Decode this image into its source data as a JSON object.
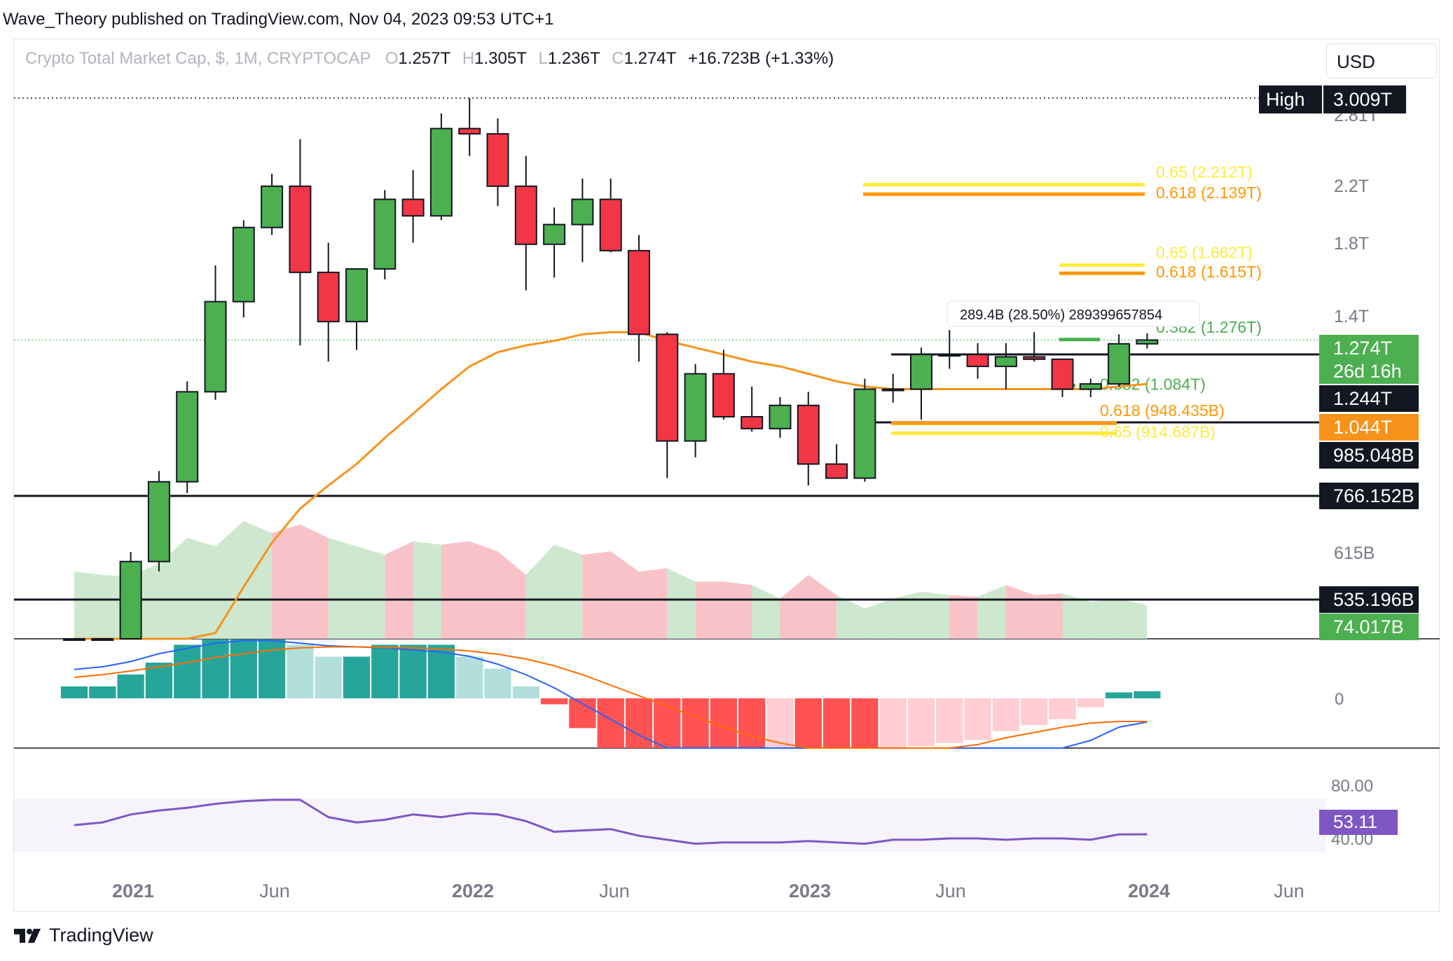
{
  "publisher": "Wave_Theory published on TradingView.com, Nov 04, 2023 09:53 UTC+1",
  "legend": {
    "symbol": "Crypto Total Market Cap, $, 1M, CRYPTOCAP",
    "o_key": "O",
    "o": "1.257T",
    "h_key": "H",
    "h": "1.305T",
    "l_key": "L",
    "l": "1.236T",
    "c_key": "C",
    "c": "1.274T",
    "change": "+16.723B (+1.33%)"
  },
  "currency": "USD",
  "footer": {
    "brand": "TradingView"
  },
  "colors": {
    "up": "#4caf50",
    "down": "#f23645",
    "ema": "#f7931a",
    "fib_yellow": "#ffeb3b",
    "fib_orange": "#ff9800",
    "rsi": "#7e57c2",
    "macd": "#2962ff",
    "signal": "#ff6d00",
    "hist_up_strong": "#26a69a",
    "hist_up_weak": "#b2dfdb",
    "hist_dn_strong": "#ff5252",
    "hist_dn_weak": "#ffcdd2"
  },
  "chart_data": {
    "type": "candlestick",
    "interval": "1M",
    "symbol": "CRYPTOCAP:TOTAL",
    "scale": "log",
    "price_axis_labels": [
      "2.81T",
      "2.2T",
      "1.8T",
      "1.4T",
      "615B",
      "0"
    ],
    "time_axis_labels": [
      "2021",
      "Jun",
      "2022",
      "Jun",
      "2023",
      "Jun",
      "2024",
      "Jun"
    ],
    "candles": [
      {
        "t": "2020-09",
        "o": 0.355,
        "h": 0.37,
        "l": 0.325,
        "c": 0.345
      },
      {
        "t": "2020-10",
        "o": 0.345,
        "h": 0.415,
        "l": 0.335,
        "c": 0.41
      },
      {
        "t": "2020-11",
        "o": 0.41,
        "h": 0.6,
        "l": 0.4,
        "c": 0.58
      },
      {
        "t": "2020-12",
        "o": 0.58,
        "h": 0.8,
        "l": 0.56,
        "c": 0.77
      },
      {
        "t": "2021-01",
        "o": 0.77,
        "h": 1.1,
        "l": 0.74,
        "c": 1.06
      },
      {
        "t": "2021-02",
        "o": 1.06,
        "h": 1.66,
        "l": 1.03,
        "c": 1.46
      },
      {
        "t": "2021-03",
        "o": 1.46,
        "h": 1.95,
        "l": 1.38,
        "c": 1.9
      },
      {
        "t": "2021-04",
        "o": 1.9,
        "h": 2.3,
        "l": 1.85,
        "c": 2.2
      },
      {
        "t": "2021-05",
        "o": 2.2,
        "h": 2.6,
        "l": 1.25,
        "c": 1.62
      },
      {
        "t": "2021-06",
        "o": 1.62,
        "h": 1.8,
        "l": 1.18,
        "c": 1.36
      },
      {
        "t": "2021-07",
        "o": 1.36,
        "h": 1.64,
        "l": 1.23,
        "c": 1.64
      },
      {
        "t": "2021-08",
        "o": 1.64,
        "h": 2.17,
        "l": 1.58,
        "c": 2.1
      },
      {
        "t": "2021-09",
        "o": 2.1,
        "h": 2.33,
        "l": 1.8,
        "c": 1.98
      },
      {
        "t": "2021-10",
        "o": 1.98,
        "h": 2.85,
        "l": 1.95,
        "c": 2.7
      },
      {
        "t": "2021-11",
        "o": 2.7,
        "h": 3.009,
        "l": 2.45,
        "c": 2.65
      },
      {
        "t": "2021-12",
        "o": 2.65,
        "h": 2.8,
        "l": 2.05,
        "c": 2.2
      },
      {
        "t": "2022-01",
        "o": 2.2,
        "h": 2.45,
        "l": 1.52,
        "c": 1.79
      },
      {
        "t": "2022-02",
        "o": 1.79,
        "h": 2.04,
        "l": 1.59,
        "c": 1.92
      },
      {
        "t": "2022-03",
        "o": 1.92,
        "h": 2.26,
        "l": 1.68,
        "c": 2.1
      },
      {
        "t": "2022-04",
        "o": 2.1,
        "h": 2.26,
        "l": 1.74,
        "c": 1.75
      },
      {
        "t": "2022-05",
        "o": 1.75,
        "h": 1.85,
        "l": 1.18,
        "c": 1.3
      },
      {
        "t": "2022-06",
        "o": 1.3,
        "h": 1.31,
        "l": 0.78,
        "c": 0.89
      },
      {
        "t": "2022-07",
        "o": 0.89,
        "h": 1.17,
        "l": 0.84,
        "c": 1.13
      },
      {
        "t": "2022-08",
        "o": 1.13,
        "h": 1.23,
        "l": 0.96,
        "c": 0.97
      },
      {
        "t": "2022-09",
        "o": 0.97,
        "h": 1.08,
        "l": 0.92,
        "c": 0.93
      },
      {
        "t": "2022-10",
        "o": 0.93,
        "h": 1.04,
        "l": 0.9,
        "c": 1.01
      },
      {
        "t": "2022-11",
        "o": 1.01,
        "h": 1.06,
        "l": 0.76,
        "c": 0.82
      },
      {
        "t": "2022-12",
        "o": 0.82,
        "h": 0.88,
        "l": 0.78,
        "c": 0.78
      },
      {
        "t": "2023-01",
        "o": 0.78,
        "h": 1.11,
        "l": 0.77,
        "c": 1.07
      },
      {
        "t": "2023-02",
        "o": 1.07,
        "h": 1.13,
        "l": 1.02,
        "c": 1.07
      },
      {
        "t": "2023-03",
        "o": 1.07,
        "h": 1.24,
        "l": 0.96,
        "c": 1.21
      },
      {
        "t": "2023-04",
        "o": 1.21,
        "h": 1.32,
        "l": 1.15,
        "c": 1.21
      },
      {
        "t": "2023-05",
        "o": 1.21,
        "h": 1.26,
        "l": 1.11,
        "c": 1.16
      },
      {
        "t": "2023-06",
        "o": 1.16,
        "h": 1.26,
        "l": 1.07,
        "c": 1.2
      },
      {
        "t": "2023-07",
        "o": 1.2,
        "h": 1.31,
        "l": 1.18,
        "c": 1.19
      },
      {
        "t": "2023-08",
        "o": 1.19,
        "h": 1.19,
        "l": 1.04,
        "c": 1.07
      },
      {
        "t": "2023-09",
        "o": 1.07,
        "h": 1.11,
        "l": 1.04,
        "c": 1.09
      },
      {
        "t": "2023-10",
        "o": 1.09,
        "h": 1.3,
        "l": 1.08,
        "c": 1.257
      },
      {
        "t": "2023-11",
        "o": 1.257,
        "h": 1.305,
        "l": 1.236,
        "c": 1.274
      }
    ],
    "ema": [
      0.24,
      0.26,
      0.29,
      0.33,
      0.38,
      0.45,
      0.53,
      0.62,
      0.7,
      0.76,
      0.82,
      0.9,
      0.98,
      1.07,
      1.16,
      1.22,
      1.25,
      1.27,
      1.3,
      1.31,
      1.31,
      1.27,
      1.24,
      1.21,
      1.18,
      1.16,
      1.13,
      1.1,
      1.08,
      1.07,
      1.07,
      1.07,
      1.07,
      1.07,
      1.07,
      1.07,
      1.07,
      1.08,
      1.09
    ],
    "volume": [
      0.4,
      0.38,
      0.37,
      0.45,
      0.6,
      0.55,
      0.7,
      0.63,
      0.68,
      0.6,
      0.55,
      0.5,
      0.58,
      0.56,
      0.58,
      0.52,
      0.38,
      0.56,
      0.5,
      0.52,
      0.4,
      0.42,
      0.34,
      0.34,
      0.32,
      0.24,
      0.38,
      0.26,
      0.18,
      0.24,
      0.28,
      0.26,
      0.25,
      0.32,
      0.26,
      0.27,
      0.22,
      0.24,
      0.2
    ],
    "macd_hist": [
      0.2,
      0.2,
      0.4,
      0.6,
      0.9,
      1.0,
      1.0,
      1.0,
      0.9,
      0.7,
      0.7,
      0.9,
      0.9,
      0.9,
      0.7,
      0.5,
      0.2,
      -0.1,
      -0.5,
      -0.9,
      -0.95,
      -0.95,
      -0.95,
      -0.95,
      -0.95,
      -0.9,
      -0.95,
      -0.95,
      -0.95,
      -0.85,
      -0.8,
      -0.75,
      -0.7,
      -0.55,
      -0.45,
      -0.35,
      -0.15,
      0.1,
      0.12
    ],
    "macd_line": [
      0.55,
      0.6,
      0.7,
      0.85,
      0.95,
      1.05,
      1.1,
      1.1,
      1.05,
      1.0,
      0.98,
      0.96,
      0.92,
      0.88,
      0.8,
      0.65,
      0.45,
      0.2,
      -0.1,
      -0.4,
      -0.7,
      -0.95,
      -1.15,
      -1.25,
      -1.35,
      -1.45,
      -1.55,
      -1.6,
      -1.55,
      -1.4,
      -1.25,
      -1.1,
      -1.0,
      -0.95,
      -0.95,
      -0.95,
      -0.8,
      -0.55,
      -0.45
    ],
    "signal_line": [
      0.4,
      0.45,
      0.52,
      0.6,
      0.68,
      0.78,
      0.85,
      0.92,
      0.96,
      0.98,
      0.98,
      0.97,
      0.96,
      0.94,
      0.9,
      0.84,
      0.75,
      0.62,
      0.45,
      0.25,
      0.05,
      -0.15,
      -0.35,
      -0.55,
      -0.72,
      -0.85,
      -0.95,
      -1.05,
      -1.12,
      -1.15,
      -1.15,
      -1.12,
      -0.88,
      -0.75,
      -0.65,
      -0.55,
      -0.47,
      -0.44,
      -0.44
    ],
    "macd_zero_label": "0",
    "rsi": [
      60,
      62,
      68,
      71,
      73,
      76,
      78,
      79,
      79,
      66,
      62,
      64,
      68,
      66,
      69,
      68,
      63,
      55,
      56,
      57,
      52,
      49,
      46,
      47,
      47,
      47,
      48,
      47,
      46,
      49,
      49,
      50,
      50,
      49,
      50,
      50,
      49,
      53,
      53.11
    ],
    "rsi_levels": [
      "80.00",
      "40.00"
    ],
    "rsi_value": "53.11",
    "horizontal_levels": [
      "766.152B",
      "535.196B",
      "985.048B",
      "1.244T"
    ],
    "fib_levels": [
      {
        "label": "0.65 (2.212T)",
        "value": 2.212,
        "color": "#ffeb3b"
      },
      {
        "label": "0.618 (2.139T)",
        "value": 2.139,
        "color": "#ff9800"
      },
      {
        "label": "0.65 (1.662T)",
        "value": 1.662,
        "color": "#ffeb3b"
      },
      {
        "label": "0.618 (1.615T)",
        "value": 1.615,
        "color": "#ff9800"
      },
      {
        "label": "0.382 (1.276T)",
        "value": 1.276,
        "color": "#4caf50"
      },
      {
        "label": "0.382 (1.084T)",
        "value": 1.084,
        "color": "#4caf50"
      },
      {
        "label": "0.618 (948.435B)",
        "value": 0.948,
        "color": "#ff9800"
      },
      {
        "label": "0.65 (914.687B)",
        "value": 0.915,
        "color": "#ffeb3b"
      }
    ],
    "measure_label": "289.4B (28.50%) 289399657854",
    "price_tags": [
      {
        "text": "High",
        "value": "3.009T",
        "style": "black"
      },
      {
        "text": "1.274T",
        "sub": "26d 16h",
        "style": "green"
      },
      {
        "text": "1.244T",
        "style": "black"
      },
      {
        "text": "1.044T",
        "style": "orange"
      },
      {
        "text": "985.048B",
        "style": "black"
      },
      {
        "text": "766.152B",
        "style": "black"
      },
      {
        "text": "535.196B",
        "style": "black"
      },
      {
        "text": "74.017B",
        "style": "green"
      }
    ]
  }
}
